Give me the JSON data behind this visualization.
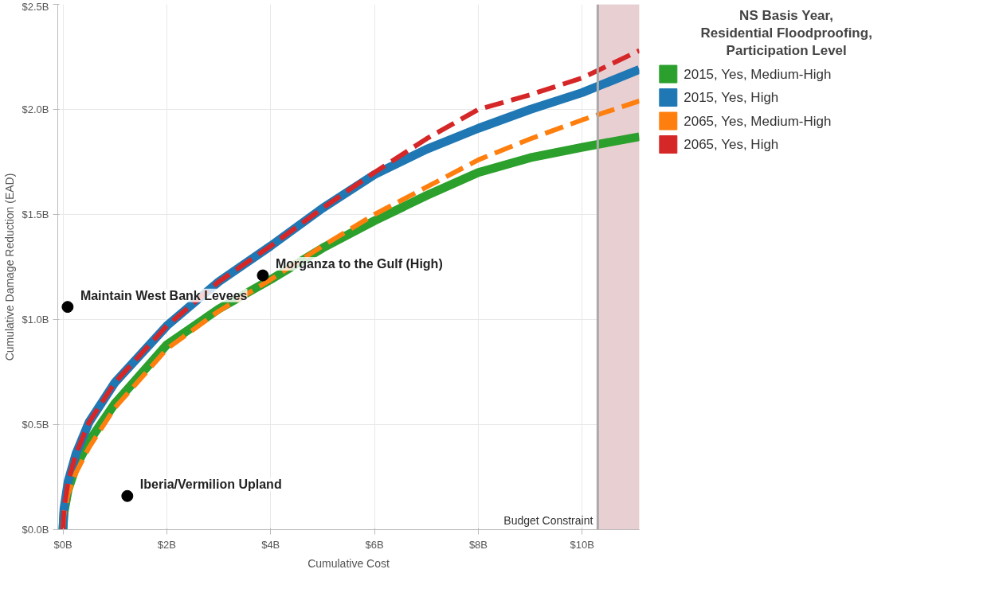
{
  "chart_data": {
    "type": "line",
    "xlabel": "Cumulative Cost",
    "ylabel": "Cumulative Damage Reduction (EAD)",
    "legend_title": "NS Basis Year,\nResidential Floodproofing,\nParticipation Level",
    "x": [
      0,
      0.02,
      0.1,
      0.25,
      0.5,
      1,
      2,
      3,
      4,
      5,
      6,
      7,
      8,
      9,
      10,
      11.1
    ],
    "xlim": [
      -0.1,
      11.1
    ],
    "ylim": [
      0,
      2.5
    ],
    "xticks": [
      {
        "value": 0,
        "label": "$0B"
      },
      {
        "value": 2,
        "label": "$2B"
      },
      {
        "value": 4,
        "label": "$4B"
      },
      {
        "value": 6,
        "label": "$6B"
      },
      {
        "value": 8,
        "label": "$8B"
      },
      {
        "value": 10,
        "label": "$10B"
      }
    ],
    "yticks": [
      {
        "value": 0,
        "label": "$0.0B"
      },
      {
        "value": 0.5,
        "label": "$0.5B"
      },
      {
        "value": 1,
        "label": "$1.0B"
      },
      {
        "value": 1.5,
        "label": "$1.5B"
      },
      {
        "value": 2,
        "label": "$2.0B"
      },
      {
        "value": 2.5,
        "label": "$2.5B"
      }
    ],
    "grid": true,
    "legend": "right",
    "series": [
      {
        "name": "2015, Yes, Medium-High",
        "color": "#2ca02c",
        "line_style": "solid",
        "values": [
          0,
          0.08,
          0.19,
          0.3,
          0.42,
          0.6,
          0.88,
          1.05,
          1.19,
          1.34,
          1.47,
          1.59,
          1.7,
          1.77,
          1.82,
          1.87
        ]
      },
      {
        "name": "2015, Yes, High",
        "color": "#1f77b4",
        "line_style": "solid",
        "values": [
          0,
          0.1,
          0.23,
          0.36,
          0.51,
          0.7,
          0.97,
          1.18,
          1.35,
          1.53,
          1.69,
          1.81,
          1.91,
          2.0,
          2.08,
          2.19
        ]
      },
      {
        "name": "2065, Yes, Medium-High",
        "color": "#ff7f0e",
        "line_style": "dashed",
        "values": [
          0,
          0.07,
          0.17,
          0.27,
          0.39,
          0.58,
          0.86,
          1.04,
          1.19,
          1.35,
          1.5,
          1.63,
          1.76,
          1.86,
          1.95,
          2.04
        ]
      },
      {
        "name": "2065, Yes, High",
        "color": "#d62728",
        "line_style": "dashed",
        "values": [
          0,
          0.1,
          0.23,
          0.36,
          0.51,
          0.7,
          0.97,
          1.18,
          1.35,
          1.53,
          1.7,
          1.86,
          2.0,
          2.07,
          2.15,
          2.28
        ]
      },
      {
        "type": "scatter",
        "color": "#000000",
        "marker": "circle",
        "x": [
          0.09,
          3.85,
          1.24
        ],
        "values": [
          1.06,
          1.21,
          0.16
        ]
      }
    ],
    "annotations": [
      {
        "text": "Maintain West Bank Levees",
        "x": 0.09,
        "y": 1.06
      },
      {
        "text": "Morganza to the Gulf (High)",
        "x": 3.85,
        "y": 1.21
      },
      {
        "text": "Iberia/Vermilion Upland",
        "x": 1.24,
        "y": 0.16
      }
    ],
    "ref_lines": [
      {
        "axis": "x",
        "value": 10.3,
        "label": "Budget Constraint",
        "color": "#aaaaaa"
      }
    ],
    "bands": [
      {
        "axis": "x",
        "from": 10.3,
        "to": 11.1,
        "color": "#e8cfd1"
      }
    ]
  }
}
